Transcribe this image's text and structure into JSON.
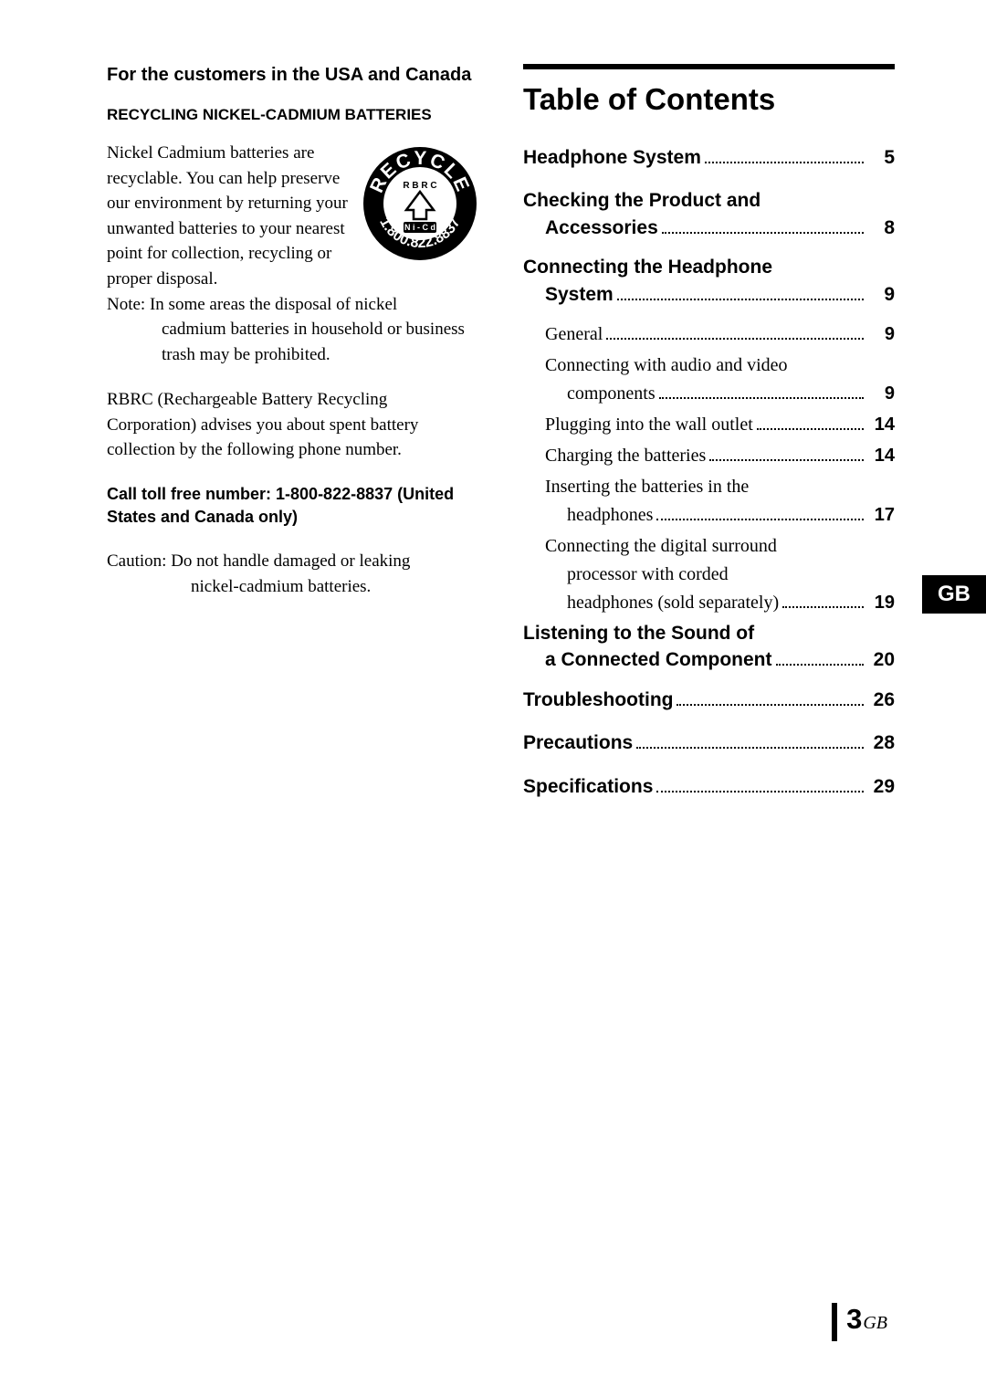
{
  "left": {
    "heading": "For the customers in the USA and Canada",
    "subheading": "RECYCLING NICKEL-CADMIUM BATTERIES",
    "recycle_icon": {
      "outer_text_top": "RECYCLE",
      "outer_text_bottom": "1.800.822.8837",
      "inner_top": "R B R C",
      "inner_bottom": "N i - C d",
      "bg": "#000000",
      "fg": "#ffffff"
    },
    "p1": "Nickel Cadmium batteries are recyclable. You can help preserve our environment by returning your unwanted batteries to your nearest point for collection, recycling or proper disposal.",
    "note_label": "Note:",
    "note_first": "In some areas the disposal of nickel",
    "note_rest": "cadmium batteries in household or business trash may be prohibited.",
    "p2": "RBRC (Rechargeable Battery Recycling Corporation) advises you about spent battery collection by the following phone number.",
    "p3": "Call toll free number: 1-800-822-8837 (United States and Canada only)",
    "caution_label": "Caution:",
    "caution_first": "Do not handle damaged or leaking",
    "caution_rest": "nickel-cadmium batteries."
  },
  "toc": {
    "title": "Table of Contents",
    "entries": [
      {
        "type": "main",
        "text": "Headphone System",
        "page": "5"
      },
      {
        "type": "main-multi",
        "line1": "Checking the Product and",
        "line2": "Accessories",
        "page": "8"
      },
      {
        "type": "main-multi",
        "line1": "Connecting the Headphone",
        "line2": "System",
        "page": "9"
      },
      {
        "type": "sub",
        "text": "General",
        "page": "9"
      },
      {
        "type": "sub-multi",
        "line1": "Connecting with audio and video",
        "line2": "components",
        "page": "9"
      },
      {
        "type": "sub",
        "text": "Plugging into the wall outlet",
        "page": "14"
      },
      {
        "type": "sub",
        "text": "Charging the batteries",
        "page": "14"
      },
      {
        "type": "sub-multi",
        "line1": "Inserting the batteries in the",
        "line2": "headphones",
        "page": "17"
      },
      {
        "type": "sub-multi3",
        "line1": "Connecting the digital surround",
        "line2": "processor with corded",
        "line3": "headphones (sold separately)",
        "page": "19"
      },
      {
        "type": "main-multi",
        "line1": "Listening to the Sound of",
        "line2": "a Connected Component",
        "page": "20"
      },
      {
        "type": "main",
        "text": "Troubleshooting",
        "page": "26"
      },
      {
        "type": "main",
        "text": "Precautions",
        "page": "28"
      },
      {
        "type": "main",
        "text": "Specifications",
        "page": "29"
      }
    ]
  },
  "tab": {
    "label": "GB",
    "bg": "#000000",
    "fg": "#ffffff"
  },
  "footer": {
    "page": "3",
    "suffix": "GB"
  }
}
